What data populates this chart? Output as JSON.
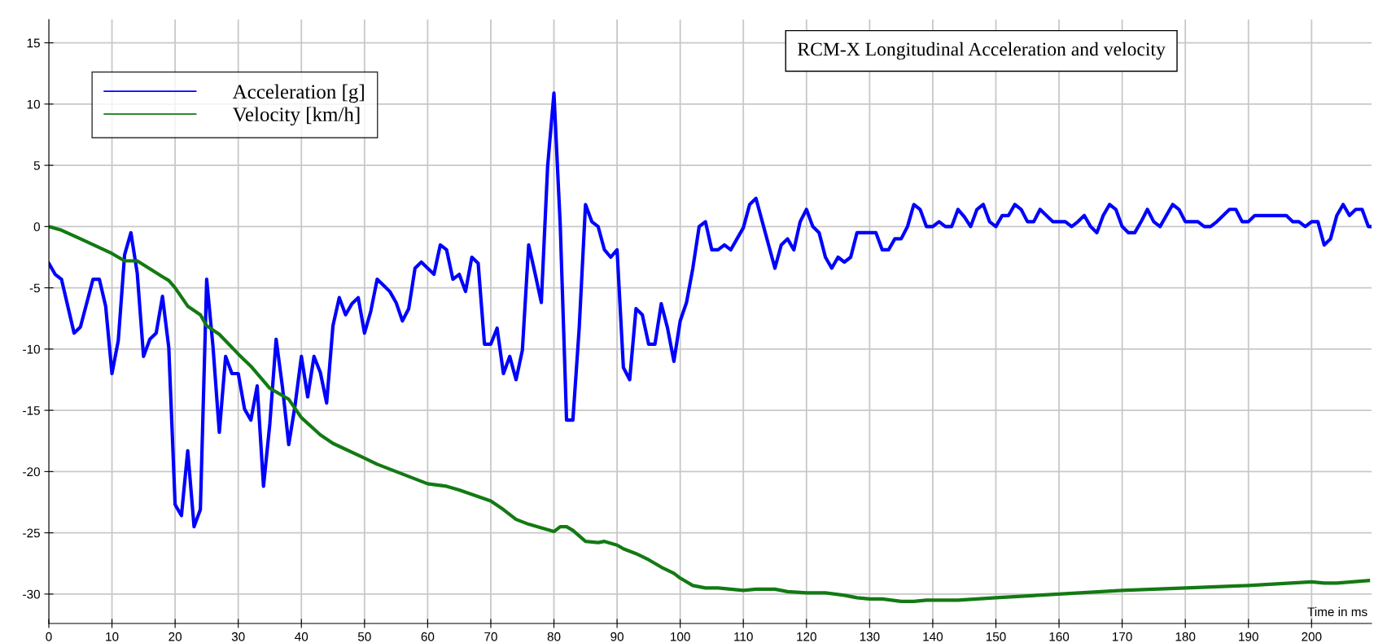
{
  "chart_data": {
    "type": "line",
    "title": "RCM-X Longitudinal Acceleration and velocity",
    "xlabel": "Time in ms",
    "xlim": [
      0,
      209.5
    ],
    "ylim": [
      -32.4,
      16.9
    ],
    "xticks": [
      0,
      10,
      20,
      30,
      40,
      50,
      60,
      70,
      80,
      90,
      100,
      110,
      120,
      130,
      140,
      150,
      160,
      170,
      180,
      190,
      200
    ],
    "yticks": [
      -30,
      -25,
      -20,
      -15,
      -10,
      -5,
      0,
      5,
      10,
      15
    ],
    "grid": true,
    "legend": "top left",
    "marker": "none",
    "line_style": "solid",
    "series": [
      {
        "name": "Acceleration [g]",
        "color": "#0000ff",
        "x": [
          0,
          1,
          2,
          4,
          5,
          7,
          8,
          9,
          10,
          11,
          12,
          13,
          14,
          15,
          16,
          17,
          18,
          19,
          20,
          21,
          22,
          23,
          24,
          25,
          26,
          27,
          28,
          29,
          30,
          31,
          32,
          33,
          34,
          35,
          36,
          37,
          38,
          39,
          40,
          41,
          42,
          43,
          44,
          45,
          46,
          47,
          48,
          49,
          50,
          51,
          52,
          53,
          54,
          55,
          56,
          57,
          58,
          59,
          60,
          61,
          62,
          63,
          64,
          65,
          66,
          67,
          68,
          69,
          70,
          71,
          72,
          73,
          74,
          75,
          76,
          77,
          78,
          79,
          80,
          81,
          82,
          83,
          84,
          85,
          86,
          87,
          88,
          89,
          90,
          91,
          92,
          93,
          94,
          95,
          96,
          97,
          98,
          99,
          100,
          101,
          102,
          103,
          104,
          105,
          106,
          107,
          108,
          109,
          110,
          111,
          112,
          113,
          114,
          115,
          116,
          117,
          118,
          119,
          120,
          121,
          122,
          123,
          124,
          125,
          126,
          127,
          128,
          129,
          130,
          131,
          132,
          133,
          134,
          135,
          136,
          137,
          138,
          139,
          140,
          141,
          142,
          143,
          144,
          145,
          146,
          147,
          148,
          149,
          150,
          151,
          152,
          153,
          154,
          155,
          156,
          157,
          158,
          159,
          160,
          161,
          162,
          163,
          164,
          165,
          166,
          167,
          168,
          169,
          170,
          171,
          172,
          173,
          174,
          175,
          176,
          177,
          178,
          179,
          180,
          181,
          182,
          183,
          184,
          185,
          186,
          187,
          188,
          189,
          190,
          191,
          192,
          193,
          194,
          195,
          196,
          197,
          198,
          199,
          200,
          201,
          202,
          203,
          204,
          205,
          206,
          207,
          208,
          209,
          209.5
        ],
        "values": [
          -3.0,
          -3.9,
          -4.3,
          -8.7,
          -8.2,
          -4.3,
          -4.3,
          -6.5,
          -12.0,
          -9.3,
          -2.3,
          -0.5,
          -3.8,
          -10.6,
          -9.2,
          -8.7,
          -5.7,
          -9.9,
          -22.7,
          -23.6,
          -18.3,
          -24.5,
          -23.1,
          -4.3,
          -9.8,
          -16.8,
          -10.6,
          -12.0,
          -12.0,
          -14.9,
          -15.8,
          -13.0,
          -21.2,
          -16.1,
          -9.2,
          -13.1,
          -17.8,
          -14.6,
          -10.6,
          -13.9,
          -10.6,
          -11.9,
          -14.4,
          -8.1,
          -5.8,
          -7.2,
          -6.3,
          -5.8,
          -8.7,
          -6.9,
          -4.3,
          -4.8,
          -5.3,
          -6.2,
          -7.7,
          -6.7,
          -3.4,
          -2.9,
          -3.4,
          -3.9,
          -1.5,
          -1.9,
          -4.3,
          -3.9,
          -5.3,
          -2.5,
          -3.0,
          -9.6,
          -9.6,
          -8.3,
          -12.0,
          -10.6,
          -12.5,
          -10.1,
          -1.5,
          -3.8,
          -6.2,
          4.9,
          10.9,
          0.1,
          -15.8,
          -15.8,
          -8.3,
          1.8,
          0.4,
          0,
          -1.9,
          -2.5,
          -1.9,
          -11.5,
          -12.5,
          -6.7,
          -7.2,
          -9.6,
          -9.6,
          -6.3,
          -8.3,
          -11.0,
          -7.7,
          -6.2,
          -3.4,
          0,
          0.4,
          -1.9,
          -1.9,
          -1.5,
          -1.9,
          -1.0,
          -0.1,
          1.8,
          2.3,
          0.4,
          -1.5,
          -3.4,
          -1.5,
          -1.0,
          -1.9,
          0.4,
          1.4,
          0,
          -0.5,
          -2.5,
          -3.4,
          -2.5,
          -2.9,
          -2.5,
          -0.5,
          -0.5,
          -0.5,
          -0.5,
          -1.9,
          -1.9,
          -1.0,
          -1.0,
          0,
          1.8,
          1.4,
          0,
          0,
          0.4,
          0,
          0,
          1.4,
          0.8,
          0,
          1.4,
          1.8,
          0.4,
          0,
          0.9,
          0.9,
          1.8,
          1.4,
          0.4,
          0.4,
          1.4,
          0.9,
          0.4,
          0.4,
          0.4,
          0,
          0.4,
          0.9,
          0,
          -0.5,
          0.9,
          1.8,
          1.4,
          0,
          -0.5,
          -0.5,
          0.4,
          1.4,
          0.4,
          0,
          0.9,
          1.8,
          1.4,
          0.4,
          0.4,
          0.4,
          0,
          0,
          0.4,
          0.9,
          1.4,
          1.4,
          0.4,
          0.4,
          0.9,
          0.9,
          0.9,
          0.9,
          0.9,
          0.9,
          0.4,
          0.4,
          0,
          0.4,
          0.4,
          -1.5,
          -1.0,
          0.9,
          1.8,
          0.9,
          1.4,
          1.4,
          0,
          0
        ]
      },
      {
        "name": "Velocity [km/h]",
        "color": "#137a13",
        "x": [
          0,
          2,
          5,
          10,
          12,
          14,
          18,
          19,
          20,
          22,
          24,
          25,
          27,
          30,
          32,
          35,
          38,
          40,
          43,
          45,
          50,
          52,
          55,
          58,
          60,
          63,
          65,
          70,
          72,
          74,
          76,
          78,
          80,
          81,
          82,
          83,
          85,
          87,
          88,
          90,
          91,
          93,
          95,
          97,
          99,
          100,
          102,
          104,
          106,
          110,
          112,
          115,
          117,
          120,
          123,
          126,
          128,
          130,
          132,
          135,
          137,
          139,
          144,
          150,
          160,
          170,
          180,
          190,
          200,
          202,
          204,
          209
        ],
        "values": [
          0,
          -0.3,
          -1.0,
          -2.2,
          -2.8,
          -2.8,
          -4.1,
          -4.4,
          -5.0,
          -6.5,
          -7.2,
          -8.1,
          -8.8,
          -10.4,
          -11.4,
          -13.2,
          -14.1,
          -15.6,
          -17.0,
          -17.7,
          -18.9,
          -19.4,
          -20.0,
          -20.6,
          -21.0,
          -21.2,
          -21.5,
          -22.4,
          -23.1,
          -23.9,
          -24.3,
          -24.6,
          -24.9,
          -24.5,
          -24.5,
          -24.8,
          -25.7,
          -25.8,
          -25.7,
          -26.0,
          -26.3,
          -26.7,
          -27.2,
          -27.8,
          -28.3,
          -28.7,
          -29.3,
          -29.5,
          -29.5,
          -29.7,
          -29.6,
          -29.6,
          -29.8,
          -29.9,
          -29.9,
          -30.1,
          -30.3,
          -30.4,
          -30.4,
          -30.6,
          -30.6,
          -30.5,
          -30.5,
          -30.3,
          -30.0,
          -29.7,
          -29.5,
          -29.3,
          -29.0,
          -29.1,
          -29.1,
          -28.9
        ]
      }
    ]
  }
}
